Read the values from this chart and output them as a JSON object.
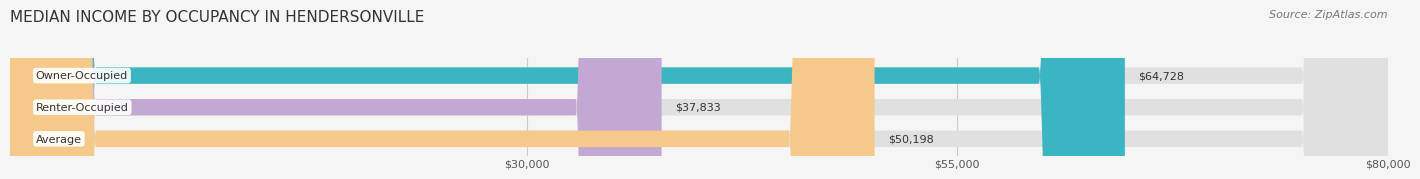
{
  "title": "MEDIAN INCOME BY OCCUPANCY IN HENDERSONVILLE",
  "source": "Source: ZipAtlas.com",
  "categories": [
    "Owner-Occupied",
    "Renter-Occupied",
    "Average"
  ],
  "values": [
    64728,
    37833,
    50198
  ],
  "bar_colors": [
    "#3ab5c1",
    "#c4a8d4",
    "#f5c98a"
  ],
  "value_labels": [
    "$64,728",
    "$37,833",
    "$50,198"
  ],
  "xlim": [
    0,
    80000
  ],
  "xticks": [
    30000,
    55000,
    80000
  ],
  "xticklabels": [
    "$30,000",
    "$55,000",
    "$80,000"
  ],
  "title_fontsize": 11,
  "source_fontsize": 8,
  "label_fontsize": 8,
  "value_fontsize": 8,
  "bar_height": 0.52,
  "background_color": "#f5f5f5"
}
